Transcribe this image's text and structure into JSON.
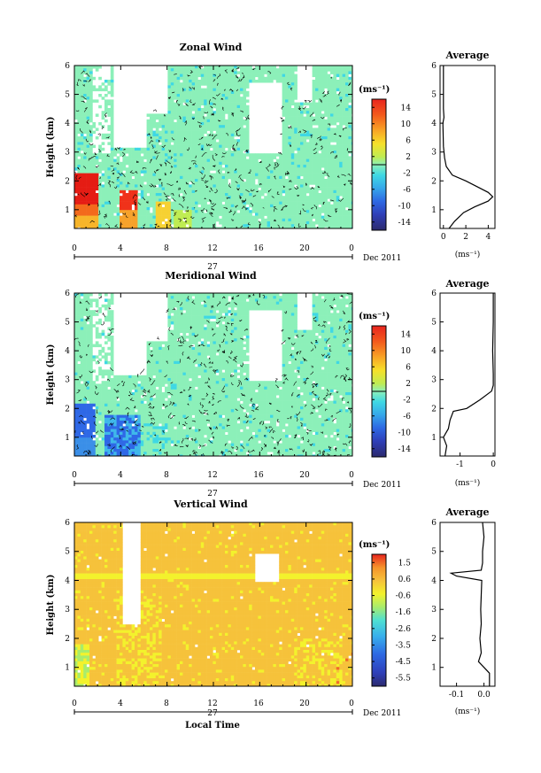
{
  "figure": {
    "date_label": "Dec 2011",
    "day_label": "27",
    "xlabel_bottom": "Local Time",
    "unit_label": "(ms⁻¹)",
    "ylabel": "Height (km)"
  },
  "chart_data": [
    {
      "type": "heatmap",
      "title": "Zonal Wind",
      "ylabel": "Height (km)",
      "xticks": [
        "0",
        "4",
        "8",
        "12",
        "16",
        "20",
        "0"
      ],
      "yticks": [
        "1",
        "2",
        "3",
        "4",
        "5",
        "6"
      ],
      "xlim": [
        0,
        24
      ],
      "ylim": [
        0.35,
        6
      ],
      "colorbar": {
        "unit": "(ms⁻¹)",
        "ticks": [
          "14",
          "10",
          "6",
          "2",
          "-2",
          "-6",
          "-10",
          "-14"
        ],
        "range": [
          -16,
          16
        ]
      },
      "average_panel": {
        "title": "Average",
        "xticks": [
          "0",
          "2",
          "4"
        ],
        "xlim": [
          -0.3,
          4.6
        ],
        "xlabel": "(ms⁻¹)",
        "yticks": [
          "1",
          "2",
          "3",
          "4",
          "5",
          "6"
        ],
        "profile": [
          [
            0.35,
            0.5
          ],
          [
            0.6,
            1.0
          ],
          [
            0.9,
            1.8
          ],
          [
            1.1,
            2.8
          ],
          [
            1.3,
            4.0
          ],
          [
            1.45,
            4.4
          ],
          [
            1.6,
            4.0
          ],
          [
            1.8,
            3.0
          ],
          [
            2.0,
            2.0
          ],
          [
            2.2,
            0.8
          ],
          [
            2.5,
            0.25
          ],
          [
            2.8,
            0.1
          ],
          [
            3.2,
            0.0
          ],
          [
            4.0,
            -0.05
          ],
          [
            4.2,
            0.05
          ],
          [
            4.5,
            0.0
          ],
          [
            6.0,
            0.0
          ]
        ]
      }
    },
    {
      "type": "heatmap",
      "title": "Meridional Wind",
      "ylabel": "Height (km)",
      "xticks": [
        "0",
        "4",
        "8",
        "12",
        "16",
        "20",
        "0"
      ],
      "yticks": [
        "1",
        "2",
        "3",
        "4",
        "5",
        "6"
      ],
      "xlim": [
        0,
        24
      ],
      "ylim": [
        0.35,
        6
      ],
      "colorbar": {
        "unit": "(ms⁻¹)",
        "ticks": [
          "14",
          "10",
          "6",
          "2",
          "-2",
          "-6",
          "-10",
          "-14"
        ],
        "range": [
          -16,
          16
        ]
      },
      "average_panel": {
        "title": "Average",
        "xticks": [
          "-1",
          "0"
        ],
        "xlim": [
          -1.6,
          0.05
        ],
        "xlabel": "(ms⁻¹)",
        "yticks": [
          "1",
          "2",
          "3",
          "4",
          "5",
          "6"
        ],
        "profile": [
          [
            0.35,
            -1.45
          ],
          [
            0.7,
            -1.4
          ],
          [
            1.0,
            -1.5
          ],
          [
            1.3,
            -1.35
          ],
          [
            1.6,
            -1.3
          ],
          [
            1.9,
            -1.2
          ],
          [
            2.0,
            -0.8
          ],
          [
            2.3,
            -0.4
          ],
          [
            2.6,
            -0.05
          ],
          [
            2.8,
            0.0
          ],
          [
            3.2,
            0.0
          ],
          [
            4.0,
            -0.02
          ],
          [
            5.0,
            0.0
          ],
          [
            6.0,
            0.0
          ]
        ]
      }
    },
    {
      "type": "heatmap",
      "title": "Vertical Wind",
      "ylabel": "Height (km)",
      "xlabel": "Local Time",
      "xticks": [
        "0",
        "4",
        "8",
        "12",
        "16",
        "20",
        "0"
      ],
      "yticks": [
        "1",
        "2",
        "3",
        "4",
        "5",
        "6"
      ],
      "xlim": [
        0,
        24
      ],
      "ylim": [
        0.35,
        6
      ],
      "colorbar": {
        "unit": "(ms⁻¹)",
        "ticks": [
          "1.5",
          "0.6",
          "-0.6",
          "-1.6",
          "-2.6",
          "-3.5",
          "-4.5",
          "-5.5"
        ],
        "range": [
          -6,
          2
        ]
      },
      "average_panel": {
        "title": "Average",
        "xticks": [
          "-0.1",
          "0.0"
        ],
        "xlim": [
          -0.16,
          0.04
        ],
        "xlabel": "(ms⁻¹)",
        "yticks": [
          "1",
          "2",
          "3",
          "4",
          "5",
          "6"
        ],
        "profile": [
          [
            0.35,
            0.02
          ],
          [
            0.8,
            0.02
          ],
          [
            1.0,
            0.0
          ],
          [
            1.2,
            -0.02
          ],
          [
            1.5,
            -0.01
          ],
          [
            2.0,
            -0.015
          ],
          [
            2.5,
            -0.01
          ],
          [
            3.0,
            -0.012
          ],
          [
            3.5,
            -0.01
          ],
          [
            4.0,
            -0.008
          ],
          [
            4.15,
            -0.1
          ],
          [
            4.25,
            -0.12
          ],
          [
            4.35,
            -0.01
          ],
          [
            4.6,
            -0.005
          ],
          [
            5.0,
            -0.005
          ],
          [
            5.5,
            0.0
          ],
          [
            6.0,
            -0.005
          ]
        ]
      }
    }
  ],
  "colors": {
    "background_field": "#8cf0b9",
    "strong_positive": "#e51c14",
    "strong_negative": "#2f68e6",
    "vertical_field": "#f6c23b"
  }
}
